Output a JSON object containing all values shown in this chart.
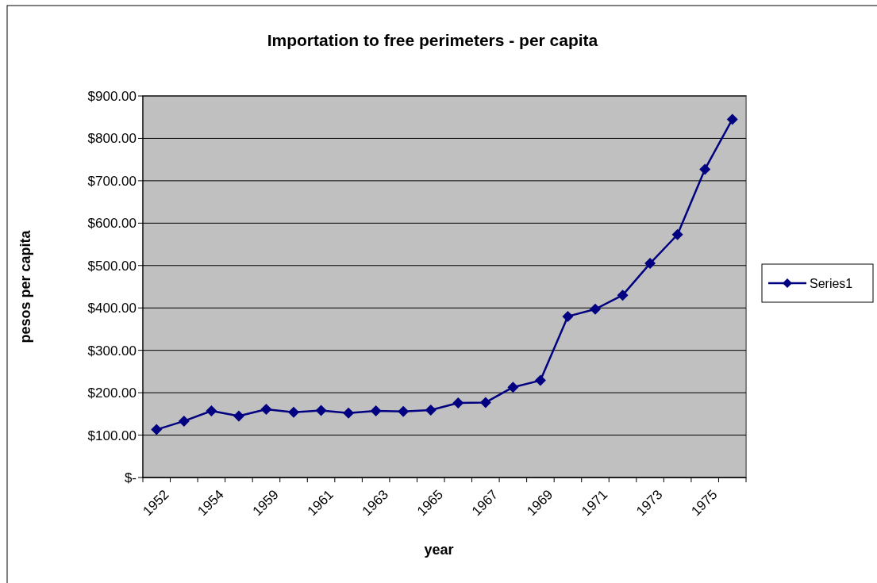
{
  "chart_data": {
    "type": "line",
    "title": "Importation to free perimeters - per capita",
    "xlabel": "year",
    "ylabel": "pesos per capita",
    "categories": [
      "1952",
      null,
      "1954",
      null,
      "1959",
      null,
      "1961",
      null,
      "1963",
      null,
      "1965",
      null,
      "1967",
      null,
      "1969",
      null,
      "1971",
      null,
      "1973",
      null,
      "1975",
      null
    ],
    "series": [
      {
        "name": "Series1",
        "color": "#000080",
        "values": [
          113,
          133,
          157,
          145,
          161,
          154,
          158,
          152,
          157,
          156,
          159,
          176,
          177,
          213,
          229,
          380,
          397,
          430,
          505,
          573,
          727,
          845
        ]
      }
    ],
    "ylim": [
      0,
      900
    ],
    "yticks": [
      {
        "value": 0,
        "label": "$-"
      },
      {
        "value": 100,
        "label": "$100.00"
      },
      {
        "value": 200,
        "label": "$200.00"
      },
      {
        "value": 300,
        "label": "$300.00"
      },
      {
        "value": 400,
        "label": "$400.00"
      },
      {
        "value": 500,
        "label": "$500.00"
      },
      {
        "value": 600,
        "label": "$600.00"
      },
      {
        "value": 700,
        "label": "$700.00"
      },
      {
        "value": 800,
        "label": "$800.00"
      },
      {
        "value": 900,
        "label": "$900.00"
      }
    ],
    "grid": "y",
    "legend": "right",
    "marker": "diamond",
    "line_style": "solid"
  }
}
